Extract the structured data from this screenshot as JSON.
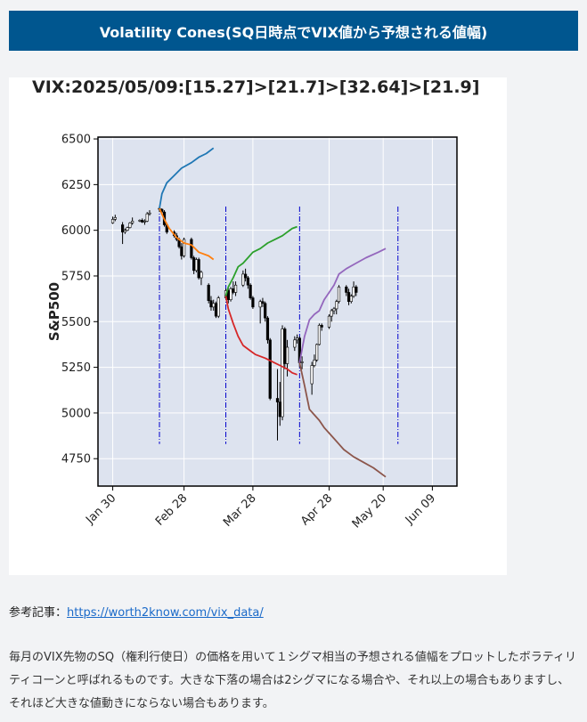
{
  "header": {
    "title": "Volatility Cones(SQ日時点でVIX値から予想される値幅)"
  },
  "chart_data": {
    "type": "line",
    "title": "VIX:2025/05/09:[15.27]>[21.7]>[32.64]>[21.9]",
    "xlabel": "",
    "ylabel": "S&P500",
    "ylim": [
      4600,
      6510
    ],
    "yticks": [
      4750,
      5000,
      5250,
      5500,
      5750,
      6000,
      6250,
      6500
    ],
    "x_range_days": [
      -6,
      140
    ],
    "xticks": [
      {
        "label": "Jan 30",
        "day": 0
      },
      {
        "label": "Feb 28",
        "day": 29
      },
      {
        "label": "Mar 28",
        "day": 57
      },
      {
        "label": "Apr 28",
        "day": 88
      },
      {
        "label": "May 20",
        "day": 110
      },
      {
        "label": "Jun 09",
        "day": 130
      }
    ],
    "grid": true,
    "sq_dates": [
      19,
      46,
      76,
      116
    ],
    "candles": [
      {
        "d": 0,
        "o": 6040,
        "h": 6075,
        "l": 6035,
        "c": 6060
      },
      {
        "d": 1,
        "o": 6060,
        "h": 6085,
        "l": 6050,
        "c": 6070
      },
      {
        "d": 4,
        "o": 6030,
        "h": 6045,
        "l": 5925,
        "c": 5990
      },
      {
        "d": 5,
        "o": 5990,
        "h": 6010,
        "l": 5980,
        "c": 6000
      },
      {
        "d": 6,
        "o": 6000,
        "h": 6020,
        "l": 5995,
        "c": 6015
      },
      {
        "d": 7,
        "o": 6015,
        "h": 6045,
        "l": 6010,
        "c": 6040
      },
      {
        "d": 8,
        "o": 6040,
        "h": 6070,
        "l": 6030,
        "c": 6050
      },
      {
        "d": 11,
        "o": 6050,
        "h": 6060,
        "l": 6045,
        "c": 6055
      },
      {
        "d": 12,
        "o": 6055,
        "h": 6065,
        "l": 6040,
        "c": 6045
      },
      {
        "d": 13,
        "o": 6045,
        "h": 6060,
        "l": 6030,
        "c": 6050
      },
      {
        "d": 14,
        "o": 6050,
        "h": 6100,
        "l": 6045,
        "c": 6090
      },
      {
        "d": 15,
        "o": 6090,
        "h": 6110,
        "l": 6080,
        "c": 6095
      },
      {
        "d": 19,
        "o": 6120,
        "h": 6125,
        "l": 6100,
        "c": 6115
      },
      {
        "d": 20,
        "o": 6115,
        "h": 6120,
        "l": 6085,
        "c": 6100
      },
      {
        "d": 21,
        "o": 6100,
        "h": 6110,
        "l": 6020,
        "c": 6030
      },
      {
        "d": 22,
        "o": 6030,
        "h": 6040,
        "l": 5980,
        "c": 5990
      },
      {
        "d": 25,
        "o": 5990,
        "h": 6000,
        "l": 5960,
        "c": 5970
      },
      {
        "d": 26,
        "o": 5970,
        "h": 5985,
        "l": 5940,
        "c": 5950
      },
      {
        "d": 27,
        "o": 5950,
        "h": 5960,
        "l": 5900,
        "c": 5910
      },
      {
        "d": 28,
        "o": 5910,
        "h": 5930,
        "l": 5840,
        "c": 5860
      },
      {
        "d": 29,
        "o": 5860,
        "h": 5960,
        "l": 5850,
        "c": 5950
      },
      {
        "d": 32,
        "o": 5950,
        "h": 5960,
        "l": 5840,
        "c": 5850
      },
      {
        "d": 33,
        "o": 5850,
        "h": 5860,
        "l": 5760,
        "c": 5780
      },
      {
        "d": 34,
        "o": 5780,
        "h": 5850,
        "l": 5770,
        "c": 5840
      },
      {
        "d": 35,
        "o": 5840,
        "h": 5850,
        "l": 5730,
        "c": 5740
      },
      {
        "d": 36,
        "o": 5740,
        "h": 5780,
        "l": 5700,
        "c": 5770
      },
      {
        "d": 39,
        "o": 5700,
        "h": 5710,
        "l": 5600,
        "c": 5615
      },
      {
        "d": 40,
        "o": 5615,
        "h": 5640,
        "l": 5560,
        "c": 5580
      },
      {
        "d": 41,
        "o": 5580,
        "h": 5620,
        "l": 5560,
        "c": 5600
      },
      {
        "d": 42,
        "o": 5600,
        "h": 5610,
        "l": 5520,
        "c": 5530
      },
      {
        "d": 43,
        "o": 5530,
        "h": 5640,
        "l": 5520,
        "c": 5630
      },
      {
        "d": 46,
        "o": 5630,
        "h": 5680,
        "l": 5620,
        "c": 5670
      },
      {
        "d": 47,
        "o": 5670,
        "h": 5690,
        "l": 5600,
        "c": 5620
      },
      {
        "d": 48,
        "o": 5620,
        "h": 5690,
        "l": 5610,
        "c": 5680
      },
      {
        "d": 49,
        "o": 5680,
        "h": 5720,
        "l": 5650,
        "c": 5660
      },
      {
        "d": 50,
        "o": 5660,
        "h": 5720,
        "l": 5640,
        "c": 5700
      },
      {
        "d": 53,
        "o": 5700,
        "h": 5780,
        "l": 5690,
        "c": 5760
      },
      {
        "d": 54,
        "o": 5760,
        "h": 5790,
        "l": 5720,
        "c": 5740
      },
      {
        "d": 55,
        "o": 5740,
        "h": 5750,
        "l": 5680,
        "c": 5700
      },
      {
        "d": 56,
        "o": 5700,
        "h": 5710,
        "l": 5620,
        "c": 5630
      },
      {
        "d": 57,
        "o": 5630,
        "h": 5640,
        "l": 5570,
        "c": 5580
      },
      {
        "d": 60,
        "o": 5580,
        "h": 5620,
        "l": 5490,
        "c": 5610
      },
      {
        "d": 61,
        "o": 5610,
        "h": 5630,
        "l": 5580,
        "c": 5600
      },
      {
        "d": 62,
        "o": 5600,
        "h": 5610,
        "l": 5500,
        "c": 5520
      },
      {
        "d": 63,
        "o": 5520,
        "h": 5530,
        "l": 5380,
        "c": 5400
      },
      {
        "d": 64,
        "o": 5400,
        "h": 5410,
        "l": 5070,
        "c": 5080
      },
      {
        "d": 67,
        "o": 5080,
        "h": 5240,
        "l": 4850,
        "c": 5060
      },
      {
        "d": 68,
        "o": 5060,
        "h": 5170,
        "l": 4930,
        "c": 4980
      },
      {
        "d": 69,
        "o": 4980,
        "h": 5480,
        "l": 4960,
        "c": 5460
      },
      {
        "d": 70,
        "o": 5460,
        "h": 5470,
        "l": 5240,
        "c": 5270
      },
      {
        "d": 71,
        "o": 5270,
        "h": 5400,
        "l": 5200,
        "c": 5360
      },
      {
        "d": 74,
        "o": 5360,
        "h": 5420,
        "l": 5340,
        "c": 5400
      },
      {
        "d": 75,
        "o": 5400,
        "h": 5430,
        "l": 5380,
        "c": 5410
      },
      {
        "d": 76,
        "o": 5410,
        "h": 5420,
        "l": 5250,
        "c": 5275
      },
      {
        "d": 77,
        "o": 5275,
        "h": 5310,
        "l": 5240,
        "c": 5280
      },
      {
        "d": 81,
        "o": 5160,
        "h": 5280,
        "l": 5100,
        "c": 5260
      },
      {
        "d": 82,
        "o": 5260,
        "h": 5320,
        "l": 5250,
        "c": 5290
      },
      {
        "d": 83,
        "o": 5290,
        "h": 5380,
        "l": 5280,
        "c": 5375
      },
      {
        "d": 84,
        "o": 5375,
        "h": 5490,
        "l": 5370,
        "c": 5480
      },
      {
        "d": 85,
        "o": 5480,
        "h": 5490,
        "l": 5450,
        "c": 5470
      },
      {
        "d": 88,
        "o": 5470,
        "h": 5540,
        "l": 5460,
        "c": 5530
      },
      {
        "d": 89,
        "o": 5530,
        "h": 5570,
        "l": 5500,
        "c": 5560
      },
      {
        "d": 90,
        "o": 5560,
        "h": 5580,
        "l": 5540,
        "c": 5570
      },
      {
        "d": 91,
        "o": 5570,
        "h": 5620,
        "l": 5540,
        "c": 5610
      },
      {
        "d": 92,
        "o": 5610,
        "h": 5700,
        "l": 5600,
        "c": 5690
      },
      {
        "d": 95,
        "o": 5690,
        "h": 5700,
        "l": 5640,
        "c": 5660
      },
      {
        "d": 96,
        "o": 5660,
        "h": 5680,
        "l": 5590,
        "c": 5610
      },
      {
        "d": 97,
        "o": 5610,
        "h": 5650,
        "l": 5600,
        "c": 5640
      },
      {
        "d": 98,
        "o": 5640,
        "h": 5720,
        "l": 5630,
        "c": 5690
      },
      {
        "d": 99,
        "o": 5690,
        "h": 5700,
        "l": 5640,
        "c": 5660
      }
    ],
    "series": [
      {
        "color": "#1f77b4",
        "points": [
          [
            19,
            6120
          ],
          [
            20,
            6200
          ],
          [
            22,
            6260
          ],
          [
            25,
            6300
          ],
          [
            28,
            6340
          ],
          [
            32,
            6370
          ],
          [
            35,
            6400
          ],
          [
            38,
            6420
          ],
          [
            41,
            6450
          ]
        ]
      },
      {
        "color": "#ff7f0e",
        "points": [
          [
            19,
            6120
          ],
          [
            21,
            6060
          ],
          [
            23,
            6010
          ],
          [
            26,
            5960
          ],
          [
            29,
            5930
          ],
          [
            32,
            5920
          ],
          [
            35,
            5880
          ],
          [
            39,
            5860
          ],
          [
            41,
            5840
          ]
        ]
      },
      {
        "color": "#2ca02c",
        "points": [
          [
            46,
            5640
          ],
          [
            47,
            5690
          ],
          [
            49,
            5740
          ],
          [
            51,
            5800
          ],
          [
            53,
            5820
          ],
          [
            55,
            5850
          ],
          [
            57,
            5880
          ],
          [
            60,
            5900
          ],
          [
            63,
            5930
          ],
          [
            66,
            5950
          ],
          [
            69,
            5970
          ],
          [
            71,
            5990
          ],
          [
            73,
            6010
          ],
          [
            75,
            6020
          ]
        ]
      },
      {
        "color": "#d62728",
        "points": [
          [
            46,
            5640
          ],
          [
            47,
            5570
          ],
          [
            49,
            5490
          ],
          [
            51,
            5420
          ],
          [
            53,
            5370
          ],
          [
            56,
            5340
          ],
          [
            58,
            5320
          ],
          [
            62,
            5300
          ],
          [
            65,
            5280
          ],
          [
            68,
            5260
          ],
          [
            71,
            5240
          ],
          [
            73,
            5220
          ],
          [
            75,
            5210
          ]
        ]
      },
      {
        "color": "#9467bd",
        "points": [
          [
            76,
            5275
          ],
          [
            78,
            5420
          ],
          [
            80,
            5510
          ],
          [
            82,
            5540
          ],
          [
            84,
            5560
          ],
          [
            86,
            5620
          ],
          [
            88,
            5660
          ],
          [
            90,
            5700
          ],
          [
            92,
            5760
          ],
          [
            95,
            5790
          ],
          [
            99,
            5820
          ],
          [
            103,
            5850
          ],
          [
            108,
            5880
          ],
          [
            111,
            5900
          ]
        ]
      },
      {
        "color": "#8c564b",
        "points": [
          [
            76,
            5275
          ],
          [
            78,
            5150
          ],
          [
            80,
            5020
          ],
          [
            82,
            4990
          ],
          [
            84,
            4960
          ],
          [
            86,
            4920
          ],
          [
            88,
            4890
          ],
          [
            90,
            4860
          ],
          [
            92,
            4830
          ],
          [
            94,
            4800
          ],
          [
            98,
            4760
          ],
          [
            102,
            4730
          ],
          [
            106,
            4700
          ],
          [
            111,
            4650
          ]
        ]
      }
    ]
  },
  "reference": {
    "label": "参考記事：",
    "link_text": "https://worth2know.com/vix_data/"
  },
  "description": "毎月のVIX先物のSQ（権利行使日）の価格を用いて１シグマ相当の予想される値幅をプロットしたボラティリティコーンと呼ばれるものです。大きな下落の場合は2シグマになる場合や、それ以上の場合もありますし、それほど大きな値動きにならない場合もあります。"
}
